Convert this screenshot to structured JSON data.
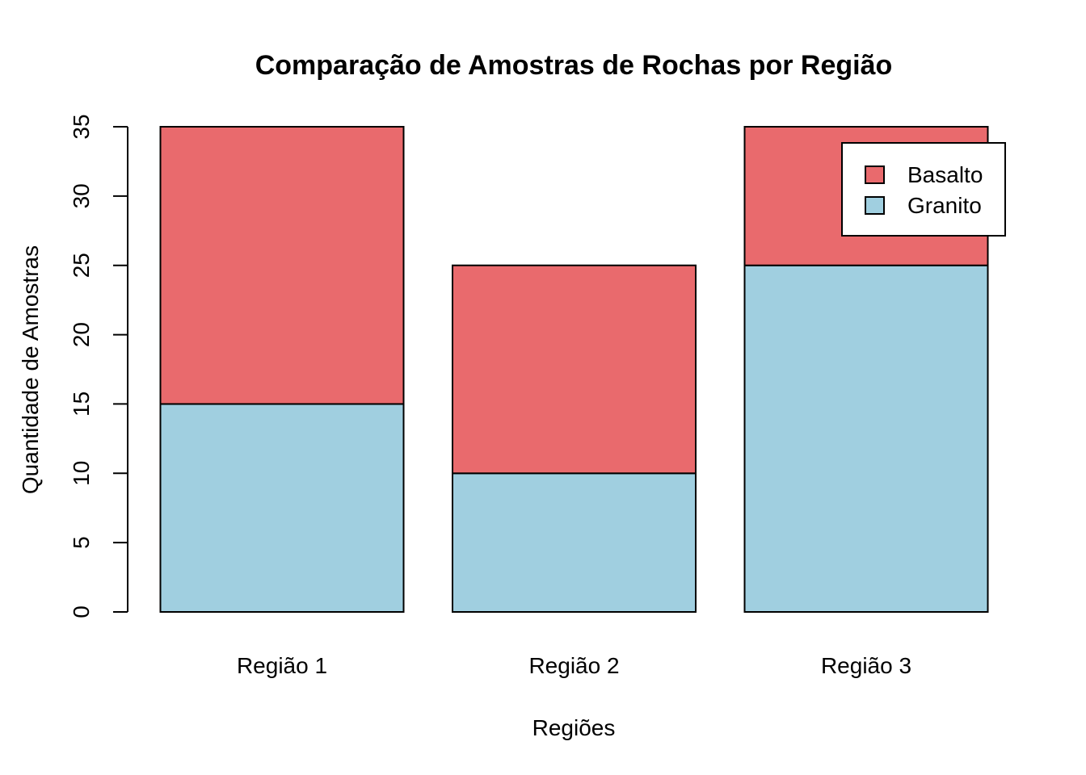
{
  "chart_data": {
    "type": "bar",
    "stacked": true,
    "title": "Comparação de Amostras de Rochas por Região",
    "xlabel": "Regiões",
    "ylabel": "Quantidade de Amostras",
    "categories": [
      "Região 1",
      "Região 2",
      "Região 3"
    ],
    "series": [
      {
        "name": "Granito",
        "values": [
          15,
          10,
          25
        ],
        "color": "#A0CFE0"
      },
      {
        "name": "Basalto",
        "values": [
          20,
          15,
          10
        ],
        "color": "#E96A6D"
      }
    ],
    "ylim": [
      0,
      35
    ],
    "yticks": [
      "0",
      "5",
      "10",
      "15",
      "20",
      "25",
      "30",
      "35"
    ],
    "legend": {
      "position": "top-right",
      "entries": [
        "Basalto",
        "Granito"
      ]
    },
    "grid": false
  }
}
